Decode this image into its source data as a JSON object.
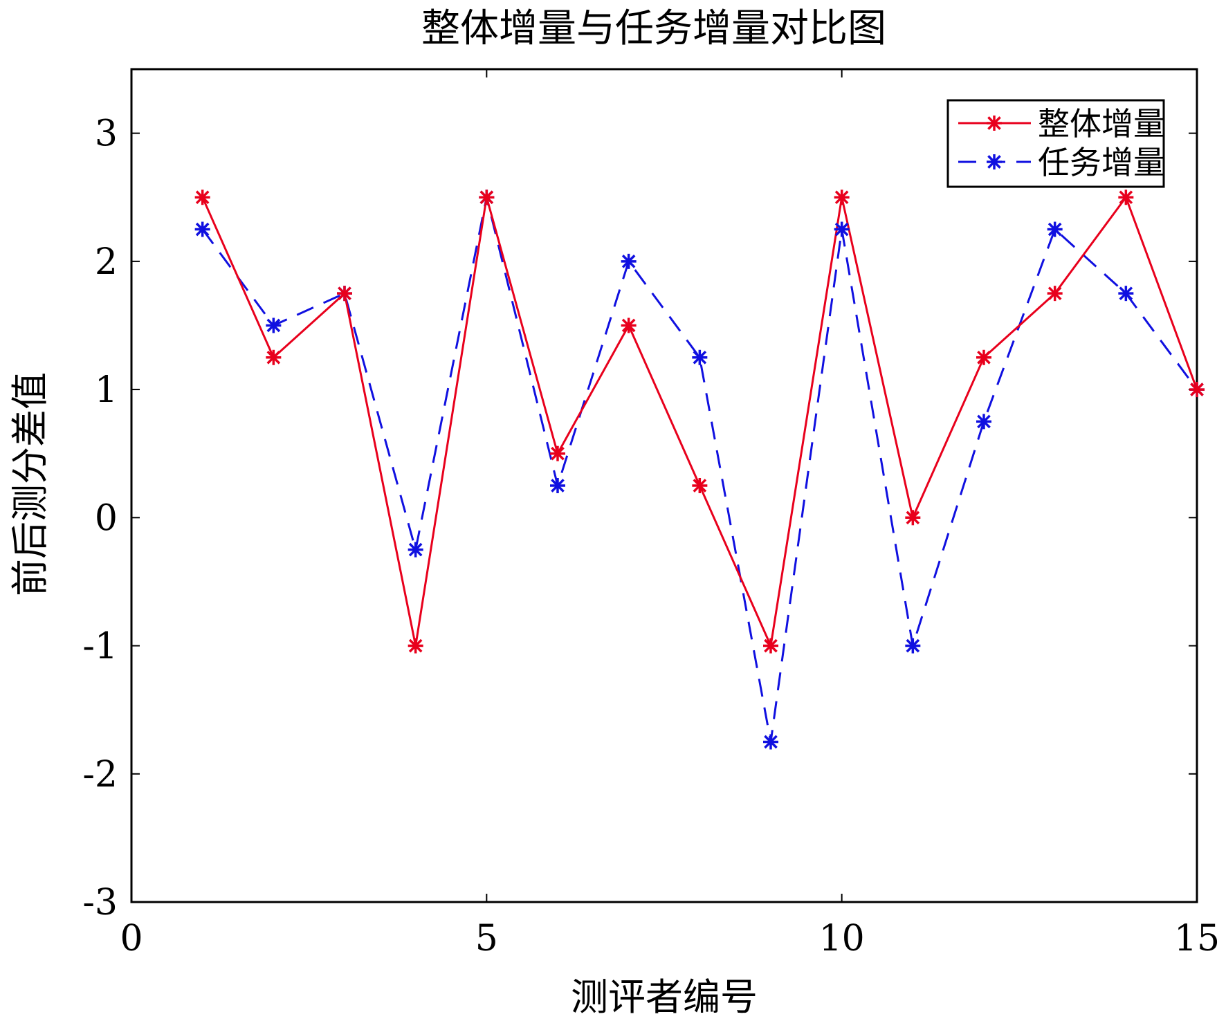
{
  "chart_data": {
    "type": "line",
    "title": "整体增量与任务增量对比图",
    "xlabel": "测评者编号",
    "ylabel": "前后测分差值",
    "xlim": [
      0,
      15
    ],
    "ylim": [
      -3,
      3.5
    ],
    "xticks": [
      0,
      5,
      10,
      15
    ],
    "yticks": [
      -3,
      -2,
      -1,
      0,
      1,
      2,
      3
    ],
    "legend_position": "top-right",
    "x": [
      1,
      2,
      3,
      4,
      5,
      6,
      7,
      8,
      9,
      10,
      11,
      12,
      13,
      14,
      15
    ],
    "series": [
      {
        "name": "整体增量",
        "color": "#e8001c",
        "line_style": "solid",
        "marker": "asterisk",
        "values": [
          2.5,
          1.25,
          1.75,
          -1,
          2.5,
          0.5,
          1.5,
          0.25,
          -1,
          2.5,
          0,
          1.25,
          1.75,
          2.5,
          1
        ]
      },
      {
        "name": "任务增量",
        "color": "#1010e0",
        "line_style": "dashed",
        "marker": "asterisk",
        "values": [
          2.25,
          1.5,
          1.75,
          -0.25,
          2.5,
          0.25,
          2,
          1.25,
          -1.75,
          2.25,
          -1,
          0.75,
          2.25,
          1.75,
          1
        ]
      }
    ]
  }
}
